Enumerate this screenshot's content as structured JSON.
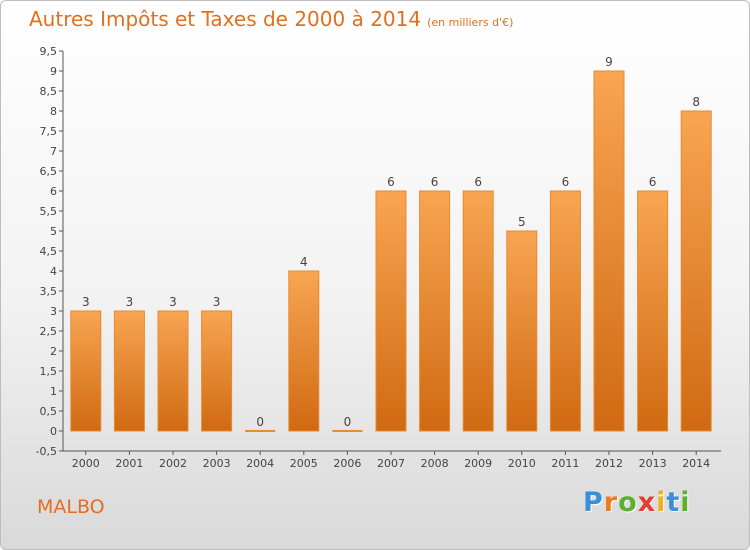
{
  "chart_data": {
    "type": "bar",
    "title": "Autres Impôts et Taxes de 2000 à 2014",
    "unit": "(en milliers d'€)",
    "categories": [
      "2000",
      "2001",
      "2002",
      "2003",
      "2004",
      "2005",
      "2006",
      "2007",
      "2008",
      "2009",
      "2010",
      "2011",
      "2012",
      "2013",
      "2014"
    ],
    "values": [
      3,
      3,
      3,
      3,
      0,
      4,
      0,
      6,
      6,
      6,
      5,
      6,
      9,
      6,
      8
    ],
    "value_labels": [
      "3",
      "3",
      "3",
      "3",
      "0",
      "4",
      "0",
      "6",
      "6",
      "6",
      "5",
      "6",
      "9",
      "6",
      "8"
    ],
    "y_ticks": [
      "9,5",
      "9",
      "8,5",
      "8",
      "7,5",
      "7",
      "6,5",
      "6",
      "5,5",
      "5",
      "4,5",
      "4",
      "3,5",
      "3",
      "2,5",
      "2",
      "1,5",
      "1",
      "0,5",
      "0",
      "-0,5"
    ],
    "y_tick_values": [
      9.5,
      9,
      8.5,
      8,
      7.5,
      7,
      6.5,
      6,
      5.5,
      5,
      4.5,
      4,
      3.5,
      3,
      2.5,
      2,
      1.5,
      1,
      0.5,
      0,
      -0.5
    ],
    "ylim": [
      -0.5,
      9.5
    ],
    "bar_color": "#f0902f",
    "grid": false
  },
  "place": "MALBO",
  "logo": {
    "letters": [
      "P",
      "r",
      "o",
      "x",
      "i",
      "t",
      "i"
    ],
    "colors": [
      "#3a8fd8",
      "#f07a20",
      "#5cb030",
      "#e83b2f",
      "#f0b020",
      "#3a8fd8",
      "#5cb030"
    ]
  }
}
